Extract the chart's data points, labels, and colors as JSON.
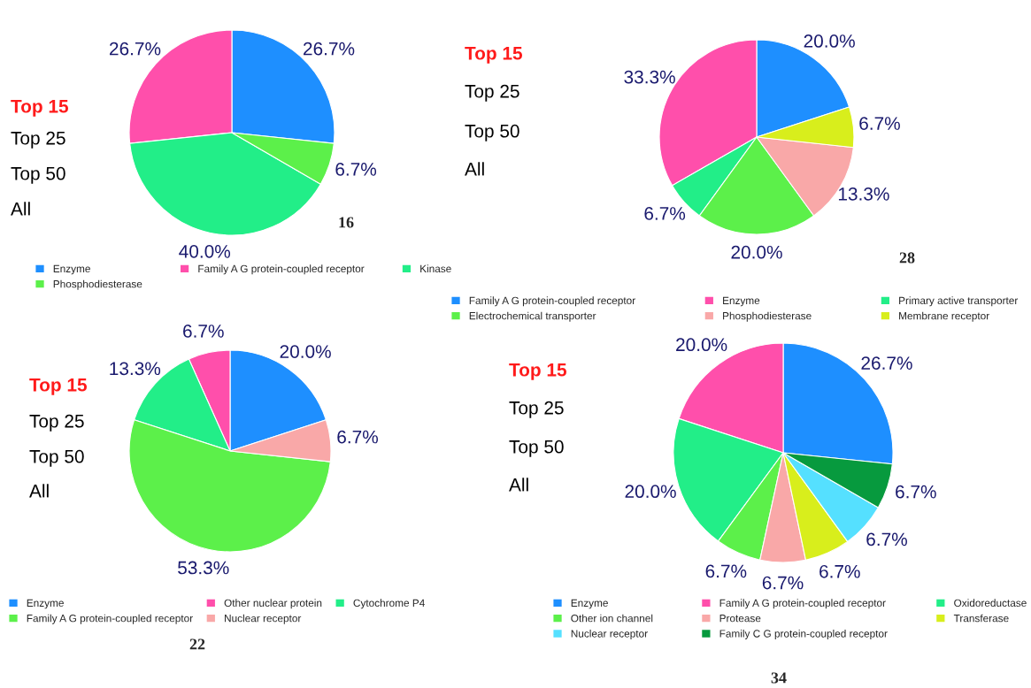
{
  "chart_data": [
    {
      "type": "pie",
      "categories": [
        "Enzyme",
        "Family A G protein-coupled receptor",
        "Kinase",
        "Phosphodiesterase"
      ],
      "values": [
        26.7,
        26.7,
        40.0,
        6.7
      ],
      "value_labels": [
        "26.7%",
        "26.7%",
        "40.0%",
        "6.7%"
      ],
      "colors": [
        "#1e8fff",
        "#ff4fab",
        "#22ee88",
        "#5cf04a"
      ],
      "legend": "bottom",
      "annotations": [
        "Top 15",
        "Top 25",
        "Top 50",
        "All",
        "16"
      ]
    },
    {
      "type": "pie",
      "categories": [
        "Family A G protein-coupled receptor",
        "Enzyme",
        "Primary active transporter",
        "Electrochemical transporter",
        "Phosphodiesterase",
        "Membrane receptor"
      ],
      "values": [
        20.0,
        33.3,
        6.7,
        20.0,
        13.3,
        6.7
      ],
      "value_labels": [
        "20.0%",
        "33.3%",
        "6.7%",
        "20.0%",
        "13.3%",
        "6.7%"
      ],
      "colors": [
        "#1e8fff",
        "#ff4fab",
        "#22ee88",
        "#5cf04a",
        "#f9a8a8",
        "#d8ee1c"
      ],
      "legend": "bottom",
      "annotations": [
        "Top 15",
        "Top 25",
        "Top 50",
        "All",
        "28"
      ]
    },
    {
      "type": "pie",
      "categories": [
        "Enzyme",
        "Other nuclear protein",
        "Cytochrome P4",
        "Family A G protein-coupled receptor",
        "Nuclear receptor"
      ],
      "values": [
        20.0,
        6.7,
        13.3,
        53.3,
        6.7
      ],
      "value_labels": [
        "20.0%",
        "6.7%",
        "13.3%",
        "53.3%",
        "6.7%"
      ],
      "colors": [
        "#1e8fff",
        "#ff4fab",
        "#22ee88",
        "#5cf04a",
        "#f9a8a8"
      ],
      "legend": "bottom",
      "annotations": [
        "Top 15",
        "Top 25",
        "Top 50",
        "All",
        "22"
      ]
    },
    {
      "type": "pie",
      "categories": [
        "Enzyme",
        "Family A G protein-coupled receptor",
        "Oxidoreductase",
        "Other ion channel",
        "Protease",
        "Transferase",
        "Nuclear receptor",
        "Family C G protein-coupled receptor"
      ],
      "values": [
        26.7,
        20.0,
        20.0,
        6.7,
        6.7,
        6.7,
        6.7,
        6.7
      ],
      "value_labels": [
        "26.7%",
        "20.0%",
        "20.0%",
        "6.7%",
        "6.7%",
        "6.7%",
        "6.7%",
        "6.7%"
      ],
      "colors": [
        "#1e8fff",
        "#ff4fab",
        "#22ee88",
        "#5cf04a",
        "#f9a8a8",
        "#d8ee1c",
        "#55e0ff",
        "#079a3e"
      ],
      "legend": "bottom",
      "annotations": [
        "Top 15",
        "Top 25",
        "Top 50",
        "All",
        "34"
      ]
    }
  ]
}
